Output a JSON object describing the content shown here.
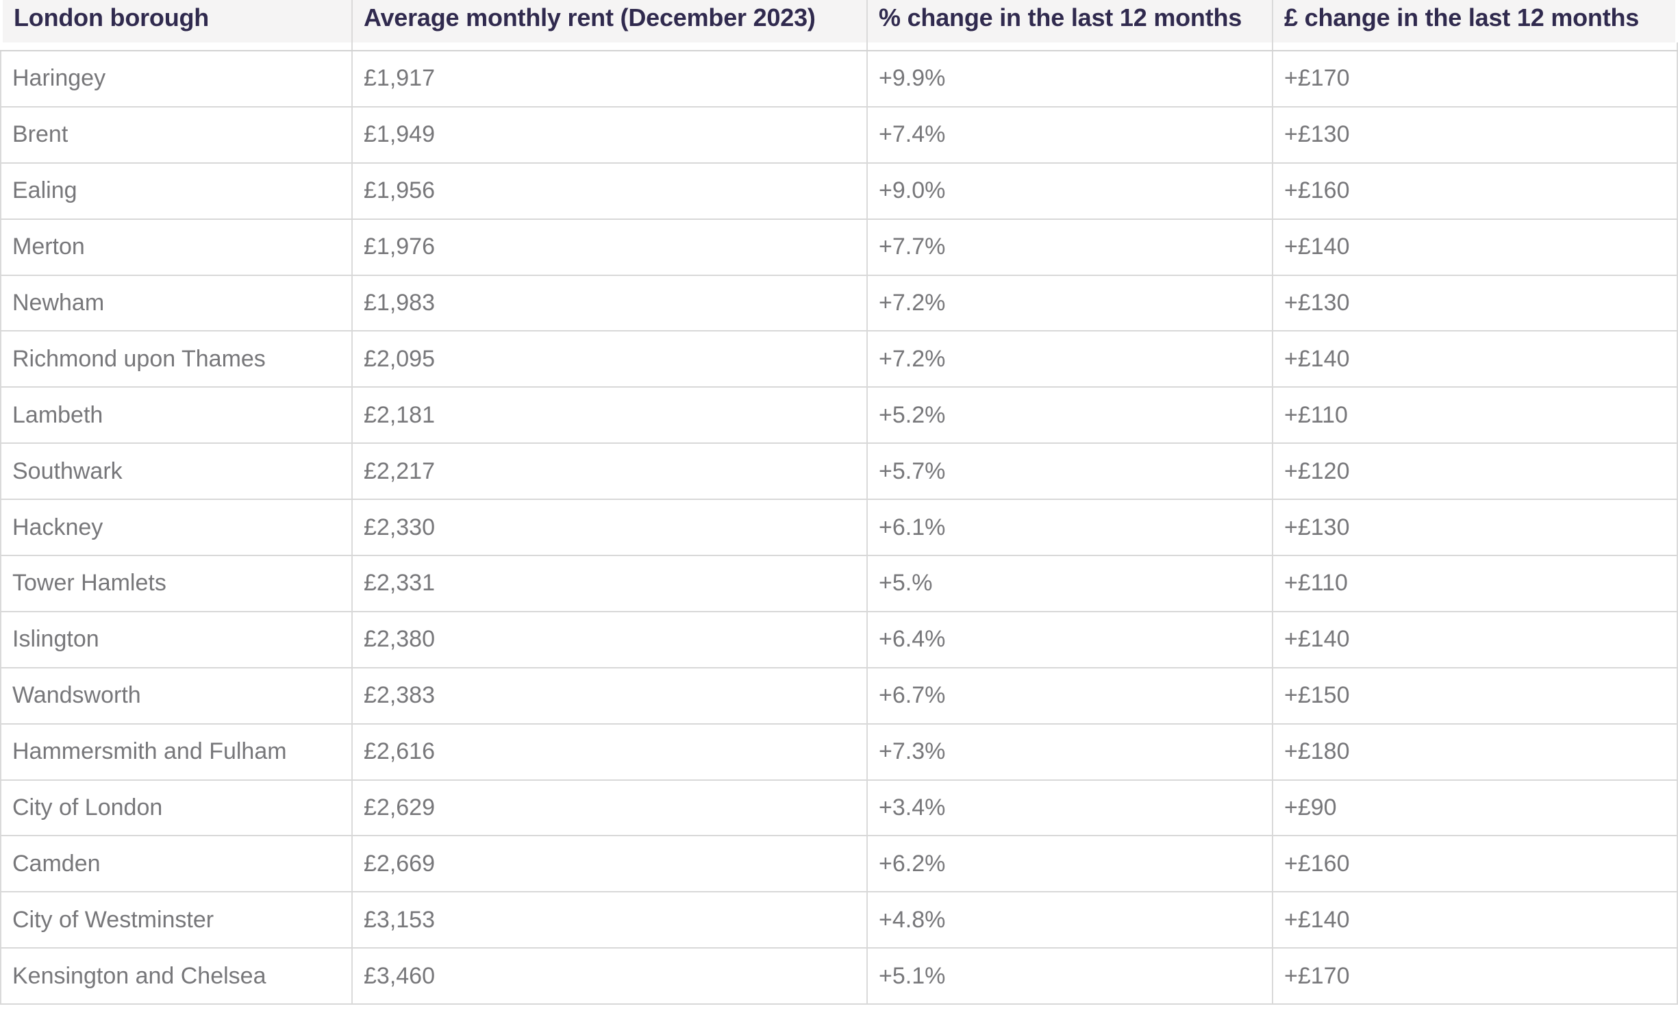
{
  "table": {
    "columns": [
      "London borough",
      "Average monthly rent (December 2023)",
      "% change in the last 12 months",
      "£ change in the last 12 months"
    ],
    "rows": [
      {
        "borough": "Haringey",
        "rent": "£1,917",
        "pct_change": "+9.9%",
        "gbp_change": "+£170"
      },
      {
        "borough": "Brent",
        "rent": "£1,949",
        "pct_change": "+7.4%",
        "gbp_change": "+£130"
      },
      {
        "borough": "Ealing",
        "rent": "£1,956",
        "pct_change": "+9.0%",
        "gbp_change": "+£160"
      },
      {
        "borough": "Merton",
        "rent": "£1,976",
        "pct_change": "+7.7%",
        "gbp_change": "+£140"
      },
      {
        "borough": "Newham",
        "rent": "£1,983",
        "pct_change": "+7.2%",
        "gbp_change": "+£130"
      },
      {
        "borough": "Richmond upon Thames",
        "rent": "£2,095",
        "pct_change": "+7.2%",
        "gbp_change": "+£140"
      },
      {
        "borough": "Lambeth",
        "rent": "£2,181",
        "pct_change": "+5.2%",
        "gbp_change": "+£110"
      },
      {
        "borough": "Southwark",
        "rent": "£2,217",
        "pct_change": "+5.7%",
        "gbp_change": "+£120"
      },
      {
        "borough": "Hackney",
        "rent": "£2,330",
        "pct_change": "+6.1%",
        "gbp_change": "+£130"
      },
      {
        "borough": "Tower Hamlets",
        "rent": "£2,331",
        "pct_change": "+5.%",
        "gbp_change": "+£110"
      },
      {
        "borough": "Islington",
        "rent": "£2,380",
        "pct_change": "+6.4%",
        "gbp_change": "+£140"
      },
      {
        "borough": "Wandsworth",
        "rent": "£2,383",
        "pct_change": "+6.7%",
        "gbp_change": "+£150"
      },
      {
        "borough": "Hammersmith and Fulham",
        "rent": "£2,616",
        "pct_change": "+7.3%",
        "gbp_change": "+£180"
      },
      {
        "borough": "City of London",
        "rent": "£2,629",
        "pct_change": "+3.4%",
        "gbp_change": "+£90"
      },
      {
        "borough": "Camden",
        "rent": "£2,669",
        "pct_change": "+6.2%",
        "gbp_change": "+£160"
      },
      {
        "borough": "City of Westminster",
        "rent": "£3,153",
        "pct_change": "+4.8%",
        "gbp_change": "+£140"
      },
      {
        "borough": "Kensington and Chelsea",
        "rent": "£3,460",
        "pct_change": "+5.1%",
        "gbp_change": "+£170"
      }
    ]
  },
  "chart_data": {
    "type": "table",
    "title": "",
    "columns": [
      "London borough",
      "Average monthly rent (December 2023)",
      "% change in the last 12 months",
      "£ change in the last 12 months"
    ],
    "categories": [
      "Haringey",
      "Brent",
      "Ealing",
      "Merton",
      "Newham",
      "Richmond upon Thames",
      "Lambeth",
      "Southwark",
      "Hackney",
      "Tower Hamlets",
      "Islington",
      "Wandsworth",
      "Hammersmith and Fulham",
      "City of London",
      "Camden",
      "City of Westminster",
      "Kensington and Chelsea"
    ],
    "series": [
      {
        "name": "Average monthly rent (December 2023), £",
        "values": [
          1917,
          1949,
          1956,
          1976,
          1983,
          2095,
          2181,
          2217,
          2330,
          2331,
          2380,
          2383,
          2616,
          2629,
          2669,
          3153,
          3460
        ]
      },
      {
        "name": "% change in the last 12 months",
        "values": [
          9.9,
          7.4,
          9.0,
          7.7,
          7.2,
          7.2,
          5.2,
          5.7,
          6.1,
          5.0,
          6.4,
          6.7,
          7.3,
          3.4,
          6.2,
          4.8,
          5.1
        ]
      },
      {
        "name": "£ change in the last 12 months",
        "values": [
          170,
          130,
          160,
          140,
          130,
          140,
          110,
          120,
          130,
          110,
          140,
          150,
          180,
          90,
          160,
          140,
          170
        ]
      }
    ]
  },
  "colors": {
    "header_bg": "#f5f4f4",
    "header_text": "#302a4e",
    "body_text": "#77777a",
    "border": "#d8d8d8"
  }
}
